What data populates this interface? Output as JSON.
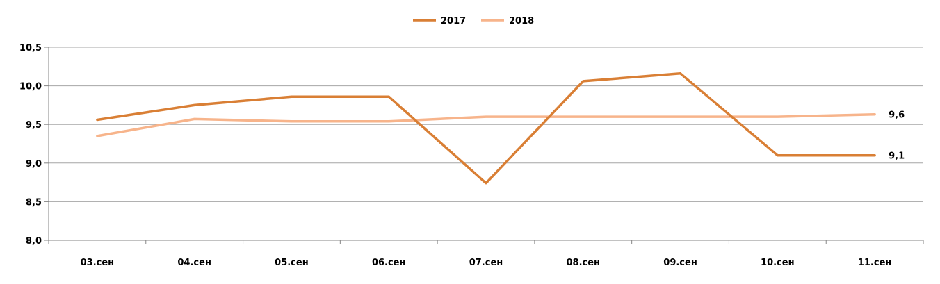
{
  "chart_data": {
    "type": "line",
    "categories": [
      "03.сен",
      "04.сен",
      "05.сен",
      "06.сен",
      "07.сен",
      "08.сен",
      "09.сен",
      "10.сен",
      "11.сен"
    ],
    "series": [
      {
        "name": "2017",
        "color": "#d97f35",
        "values": [
          9.56,
          9.75,
          9.86,
          9.86,
          8.74,
          10.06,
          10.16,
          9.1,
          9.1
        ],
        "end_label": "9,1"
      },
      {
        "name": "2018",
        "color": "#f7b48b",
        "values": [
          9.35,
          9.57,
          9.54,
          9.54,
          9.6,
          9.6,
          9.6,
          9.6,
          9.63
        ],
        "end_label": "9,6"
      }
    ],
    "y_ticks": [
      "8,0",
      "8,5",
      "9,0",
      "9,5",
      "10,0",
      "10,5"
    ],
    "ylim": [
      8.0,
      10.5
    ],
    "grid": true,
    "legend_position": "top-center"
  }
}
